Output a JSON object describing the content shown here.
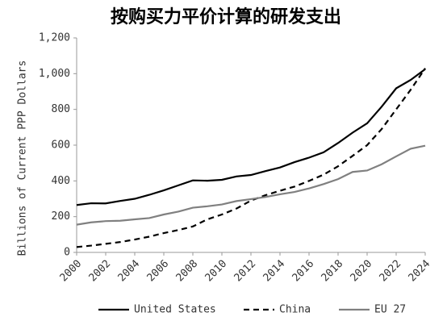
{
  "chart_data": {
    "type": "line",
    "title": "按购买力平价计算的研发支出",
    "y_label": "Billions of Current PPP Dollars",
    "x": [
      2000,
      2001,
      2002,
      2003,
      2004,
      2005,
      2006,
      2007,
      2008,
      2009,
      2010,
      2011,
      2012,
      2013,
      2014,
      2015,
      2016,
      2017,
      2018,
      2019,
      2020,
      2021,
      2022,
      2023,
      2024
    ],
    "xlim": [
      2000,
      2024
    ],
    "xticks": [
      2000,
      2002,
      2004,
      2006,
      2008,
      2010,
      2012,
      2014,
      2016,
      2018,
      2020,
      2022,
      2024
    ],
    "ylim": [
      0,
      1200
    ],
    "yticks": [
      0,
      200,
      400,
      600,
      800,
      {
        "value": 1000,
        "label": "1,000"
      },
      {
        "value": 1200,
        "label": "1,200"
      }
    ],
    "grid": false,
    "legend": "bottom",
    "series": [
      {
        "name": "United States",
        "color": "#000000",
        "dash": "solid",
        "values": [
          265,
          275,
          274,
          288,
          300,
          322,
          347,
          375,
          403,
          401,
          406,
          425,
          433,
          455,
          475,
          505,
          530,
          560,
          612,
          670,
          722,
          815,
          918,
          965,
          1025
        ]
      },
      {
        "name": "China",
        "color": "#000000",
        "dash": "dashed",
        "values": [
          30,
          38,
          48,
          58,
          72,
          88,
          108,
          125,
          145,
          185,
          212,
          245,
          290,
          320,
          345,
          368,
          400,
          435,
          482,
          540,
          600,
          690,
          800,
          910,
          1030
        ]
      },
      {
        "name": "EU 27",
        "color": "#808080",
        "dash": "solid",
        "values": [
          155,
          168,
          175,
          177,
          185,
          192,
          212,
          228,
          250,
          258,
          268,
          287,
          298,
          310,
          325,
          338,
          358,
          382,
          410,
          450,
          458,
          493,
          537,
          580,
          597
        ]
      }
    ]
  }
}
